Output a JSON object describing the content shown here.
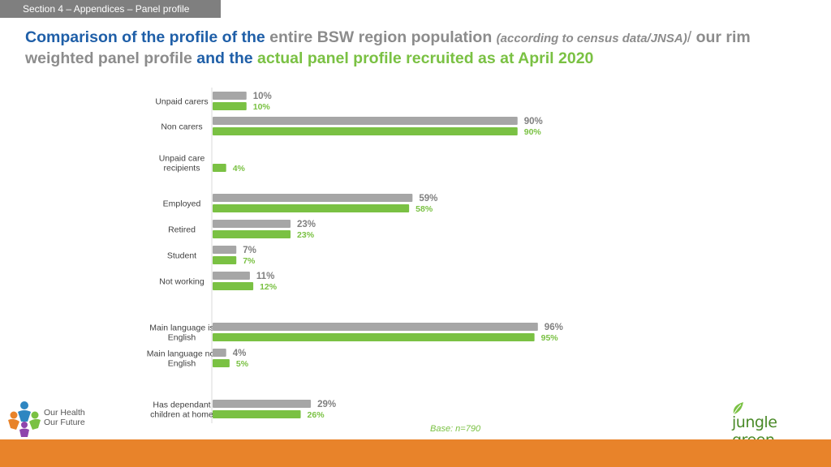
{
  "section_tab": "Section 4 – Appendices – Panel profile",
  "title": {
    "part1": "Comparison of the profile of the",
    "part2": "entire BSW region population",
    "part3": "(according to census data/JNSA)",
    "part4": "/",
    "part5": "our rim weighted panel profile",
    "part6": "and the",
    "part7": "actual panel profile recruited as at April 2020"
  },
  "colors": {
    "population": "#a6a6a6",
    "panel": "#7ac143",
    "title_blue": "#1f5fa8",
    "footer": "#e8832a"
  },
  "chart_data": {
    "type": "bar",
    "orientation": "horizontal",
    "categories": [
      "Unpaid carers",
      "Non carers",
      "Unpaid care recipients",
      "Employed",
      "Retired",
      "Student",
      "Not working",
      "Main language is English",
      "Main language not English",
      "Has dependant children at home"
    ],
    "category_labels": [
      [
        "Unpaid carers"
      ],
      [
        "Non carers"
      ],
      [
        "Unpaid care",
        "recipients"
      ],
      [
        "Employed"
      ],
      [
        "Retired"
      ],
      [
        "Student"
      ],
      [
        "Not working"
      ],
      [
        "Main language is",
        "English"
      ],
      [
        "Main language not",
        "English"
      ],
      [
        "Has dependant",
        "children at home"
      ]
    ],
    "series": [
      {
        "values": [
          10,
          90,
          null,
          59,
          23,
          7,
          11,
          96,
          4,
          29
        ],
        "color": "#a6a6a6"
      },
      {
        "values": [
          10,
          90,
          4,
          58,
          23,
          7,
          12,
          95,
          5,
          26
        ],
        "color": "#7ac143"
      }
    ],
    "value_suffix": "%",
    "xlim": [
      0,
      100
    ]
  },
  "base_note": "Base: n=790",
  "logos": {
    "left": "Our Health Our Future",
    "left_line1": "Our Health",
    "left_line2": "Our Future",
    "right": "jungle green"
  }
}
